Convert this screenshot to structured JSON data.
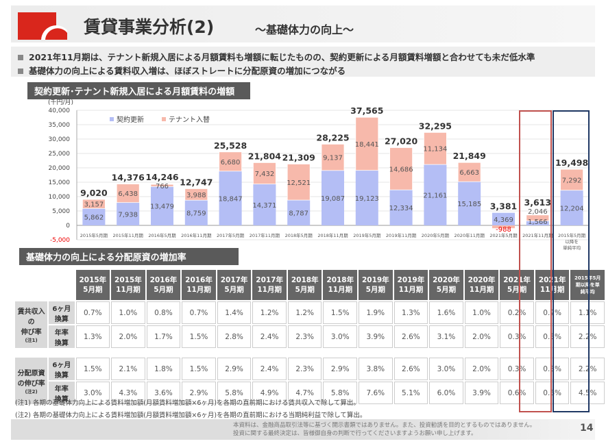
{
  "header": {
    "title": "賃貸事業分析(2)",
    "subtitle": "～基礎体力の向上～"
  },
  "bullets": [
    "2021年11月期は、テナント新規入居による月額賃料も増額に転じたものの、契約更新による月額賃料増額と合わせても未だ低水準",
    "基礎体力の向上による賃料収入増は、ほぼストレートに分配原資の増加につながる"
  ],
  "chart_section_title": "契約更新･テナント新規入居による月額賃料の増額",
  "table_section_title": "基礎体力の向上による分配原資の増加率",
  "colors": {
    "renewal": "#b4bef5",
    "tenant": "#f7b9ab",
    "highlight_red": "#c0504d",
    "highlight_blue": "#1f3864"
  },
  "chart_data": {
    "type": "bar",
    "stacked": true,
    "unit_label": "(千円/月)",
    "ylim": [
      -5000,
      40000
    ],
    "yticks": [
      "40,000",
      "35,000",
      "30,000",
      "25,000",
      "20,000",
      "15,000",
      "10,000",
      "5,000",
      "0",
      "-5,000"
    ],
    "categories": [
      "2015年5月期",
      "2015年11月期",
      "2016年5月期",
      "2016年11月期",
      "2017年5月期",
      "2017年11月期",
      "2018年5月期",
      "2018年11月期",
      "2019年5月期",
      "2019年11月期",
      "2020年5月期",
      "2020年11月期",
      "2021年5月期",
      "2021年11月期",
      "2015年5月期以降を単純平均"
    ],
    "category_labels": [
      "2015年5月期",
      "2015年11月期",
      "2016年5月期",
      "2016年11月期",
      "2017年5月期",
      "2017年11月期",
      "2018年5月期",
      "2018年11月期",
      "2019年5月期",
      "2019年11月期",
      "2020年5月期",
      "2020年11月期",
      "2021年5月期",
      "2021年11月期",
      "2015年5月期 以降を 単純平均"
    ],
    "series": [
      {
        "name": "契約更新",
        "values": [
          5862,
          7938,
          13479,
          8759,
          18847,
          14371,
          8787,
          19087,
          19123,
          12334,
          21161,
          15185,
          4369,
          1566,
          12204
        ],
        "labels": [
          "5,862",
          "7,938",
          "13,479",
          "8,759",
          "18,847",
          "14,371",
          "8,787",
          "19,087",
          "19,123",
          "12,334",
          "21,161",
          "15,185",
          "4,369",
          "1,566",
          "12,204"
        ]
      },
      {
        "name": "テナント入替",
        "values": [
          3157,
          6438,
          766,
          3988,
          6680,
          7432,
          12521,
          9137,
          18441,
          14686,
          11134,
          6663,
          -988,
          2046,
          7292
        ],
        "labels": [
          "3,157",
          "6,438",
          "766",
          "3,988",
          "6,680",
          "7,432",
          "12,521",
          "9,137",
          "18,441",
          "14,686",
          "11,134",
          "6,663",
          "-988",
          "2,046",
          "7,292"
        ]
      }
    ],
    "totals": [
      "9,020",
      "14,376",
      "14,246",
      "12,747",
      "25,528",
      "21,804",
      "21,309",
      "28,225",
      "37,565",
      "27,020",
      "32,295",
      "21,849",
      "3,381",
      "3,613",
      "19,498"
    ],
    "legend": "top-left",
    "grid": true
  },
  "table": {
    "headers": [
      [
        "2015年",
        "5月期"
      ],
      [
        "2015年",
        "11月期"
      ],
      [
        "2016年",
        "5月期"
      ],
      [
        "2016年",
        "11月期"
      ],
      [
        "2017年",
        "5月期"
      ],
      [
        "2017年",
        "11月期"
      ],
      [
        "2018年",
        "5月期"
      ],
      [
        "2018年",
        "11月期"
      ],
      [
        "2019年",
        "5月期"
      ],
      [
        "2019年",
        "11月期"
      ],
      [
        "2020年",
        "5月期"
      ],
      [
        "2020年",
        "11月期"
      ],
      [
        "2021年",
        "5月期"
      ],
      [
        "2021年",
        "11月期"
      ],
      [
        "2015年5月",
        "期以降を単",
        "純平均"
      ]
    ],
    "groups": [
      {
        "label": [
          "賃共収入",
          "の",
          "伸び率",
          "(注1)"
        ],
        "rows": [
          {
            "sub": [
              "6ヶ月",
              "換算"
            ],
            "values": [
              "0.7%",
              "1.0%",
              "0.8%",
              "0.7%",
              "1.4%",
              "1.2%",
              "1.2%",
              "1.5%",
              "1.9%",
              "1.3%",
              "1.6%",
              "1.0%",
              "0.2%",
              "0.2%",
              "1.1%"
            ]
          },
          {
            "sub": [
              "年率",
              "換算"
            ],
            "values": [
              "1.3%",
              "2.0%",
              "1.7%",
              "1.5%",
              "2.8%",
              "2.4%",
              "2.3%",
              "3.0%",
              "3.9%",
              "2.6%",
              "3.1%",
              "2.0%",
              "0.3%",
              "0.3%",
              "2.2%"
            ]
          }
        ]
      },
      {
        "label": [
          "分配原資",
          "の伸び率",
          "(注2)"
        ],
        "rows": [
          {
            "sub": [
              "6ヶ月",
              "換算"
            ],
            "values": [
              "1.5%",
              "2.1%",
              "1.8%",
              "1.5%",
              "2.9%",
              "2.4%",
              "2.3%",
              "2.9%",
              "3.8%",
              "2.6%",
              "3.0%",
              "2.0%",
              "0.3%",
              "0.3%",
              "2.2%"
            ]
          },
          {
            "sub": [
              "年率",
              "換算"
            ],
            "values": [
              "3.0%",
              "4.3%",
              "3.6%",
              "2.9%",
              "5.8%",
              "4.9%",
              "4.7%",
              "5.8%",
              "7.6%",
              "5.1%",
              "6.0%",
              "3.9%",
              "0.6%",
              "0.6%",
              "4.5%"
            ]
          }
        ]
      }
    ]
  },
  "notes": [
    "(注1) 各期の基礎体力向上による賃料増加額(月額賃料増加額×6ヶ月)を各期の直前期における賃共収入で除して算出。",
    "(注2) 各期の基礎体力向上による賃料増加額(月額賃料増加額×6ヶ月)を各期の直前期における当期純利益で除して算出。"
  ],
  "footer": {
    "disclaimer": [
      "本資料は、金融商品取引法等に基づく開示書類ではありません。また、投資勧誘を目的とするものではありません。",
      "投資に関する最終決定は、皆様御自身の判断で行ってくださいますようお願い申し上げます。"
    ],
    "page": "14"
  }
}
